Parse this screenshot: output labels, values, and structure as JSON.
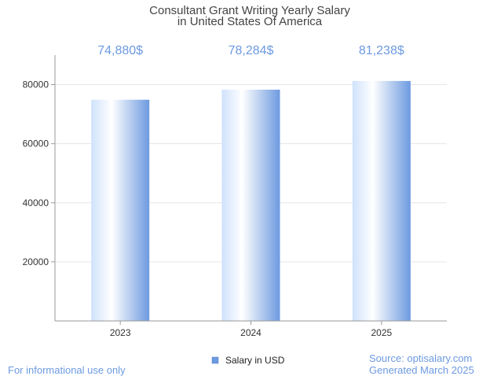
{
  "chart_data": {
    "type": "bar",
    "title": "Consultant Grant Writing Yearly Salary",
    "subtitle": "in United States Of America",
    "categories": [
      "2023",
      "2024",
      "2025"
    ],
    "series": [
      {
        "name": "Salary in USD",
        "values": [
          74880,
          78284,
          81238
        ],
        "data_labels": [
          "74,880$",
          "78,284$",
          "81,238$"
        ]
      }
    ],
    "y_ticks": [
      20000,
      40000,
      60000,
      80000
    ],
    "ylim": [
      0,
      90000
    ],
    "grid": true,
    "legend_position": "bottom-center",
    "colors": {
      "bar_edge": "#6d9ae0",
      "bar_center": "#ffffff",
      "bar_light": "#cfe2fb",
      "label": "#6d9ae0",
      "grid": "#e6e6e6",
      "axis": "#999999"
    }
  },
  "footer": {
    "left": "For informational use only",
    "source": "Source: optisalary.com",
    "generated": "Generated March 2025"
  }
}
